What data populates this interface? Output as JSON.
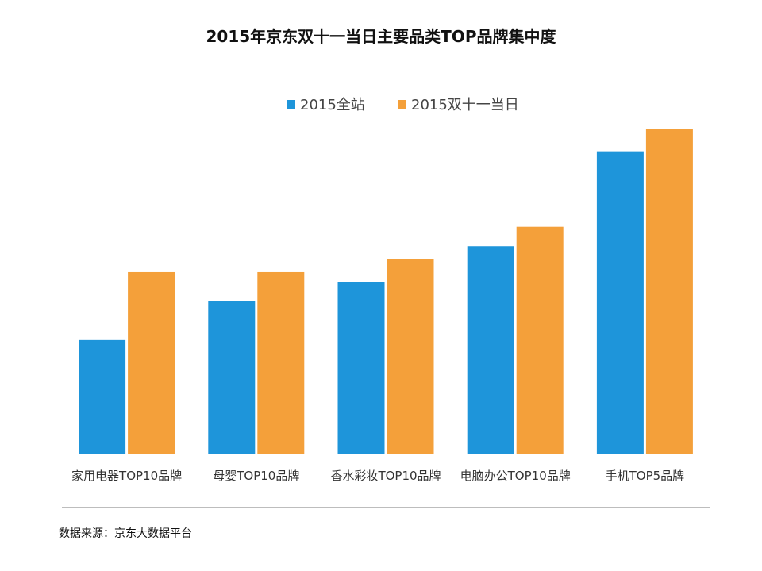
{
  "title": "2015年京东双十一当日主要品类TOP品牌集中度",
  "legend": [
    {
      "label": "2015全站",
      "color": "#1E95DA"
    },
    {
      "label": "2015双十一当日",
      "color": "#F4A03A"
    }
  ],
  "source": "数据来源：京东大数据平台",
  "chart_data": {
    "type": "bar",
    "title": "2015年京东双十一当日主要品类TOP品牌集中度",
    "xlabel": "",
    "ylabel": "",
    "ylim": [
      0,
      100
    ],
    "grid": false,
    "legend_position": "top-center",
    "categories": [
      "家用电器TOP10品牌",
      "母婴TOP10品牌",
      "香水彩妆TOP10品牌",
      "电脑办公TOP10品牌",
      "手机TOP5品牌"
    ],
    "series": [
      {
        "name": "2015全站",
        "color": "#1E95DA",
        "values": [
          35,
          47,
          53,
          64,
          93
        ]
      },
      {
        "name": "2015双十一当日",
        "color": "#F4A03A",
        "values": [
          56,
          56,
          60,
          70,
          100
        ]
      }
    ]
  }
}
